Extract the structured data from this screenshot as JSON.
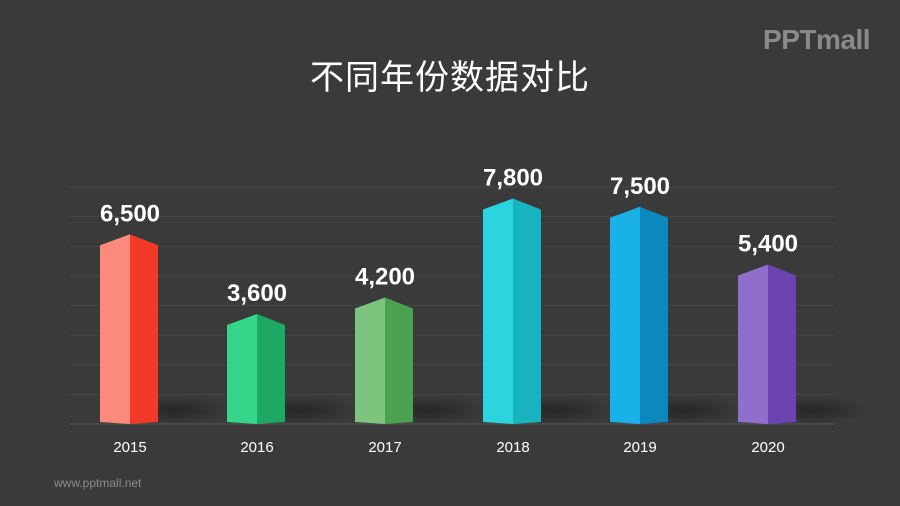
{
  "title": "不同年份数据对比",
  "logo": "PPTmall",
  "footer": "www.pptmall.net",
  "chart_data": {
    "type": "bar",
    "categories": [
      "2015",
      "2016",
      "2017",
      "2018",
      "2019",
      "2020"
    ],
    "values": [
      6500,
      3600,
      4200,
      7800,
      7500,
      5400
    ],
    "value_labels": [
      "6,500",
      "3,600",
      "4,200",
      "7,800",
      "7,500",
      "5,400"
    ],
    "ylim": [
      0,
      8500
    ],
    "grid": true,
    "bar_style": "3d-prism",
    "colors": [
      {
        "front": "#f98a7c",
        "side": "#f13a28"
      },
      {
        "front": "#35d58a",
        "side": "#1fa864"
      },
      {
        "front": "#7dc57f",
        "side": "#4aa14e"
      },
      {
        "front": "#2ad5e0",
        "side": "#17b3bf"
      },
      {
        "front": "#1ab0e8",
        "side": "#0d88bf"
      },
      {
        "front": "#8f6fcb",
        "side": "#6c44b1"
      }
    ]
  }
}
